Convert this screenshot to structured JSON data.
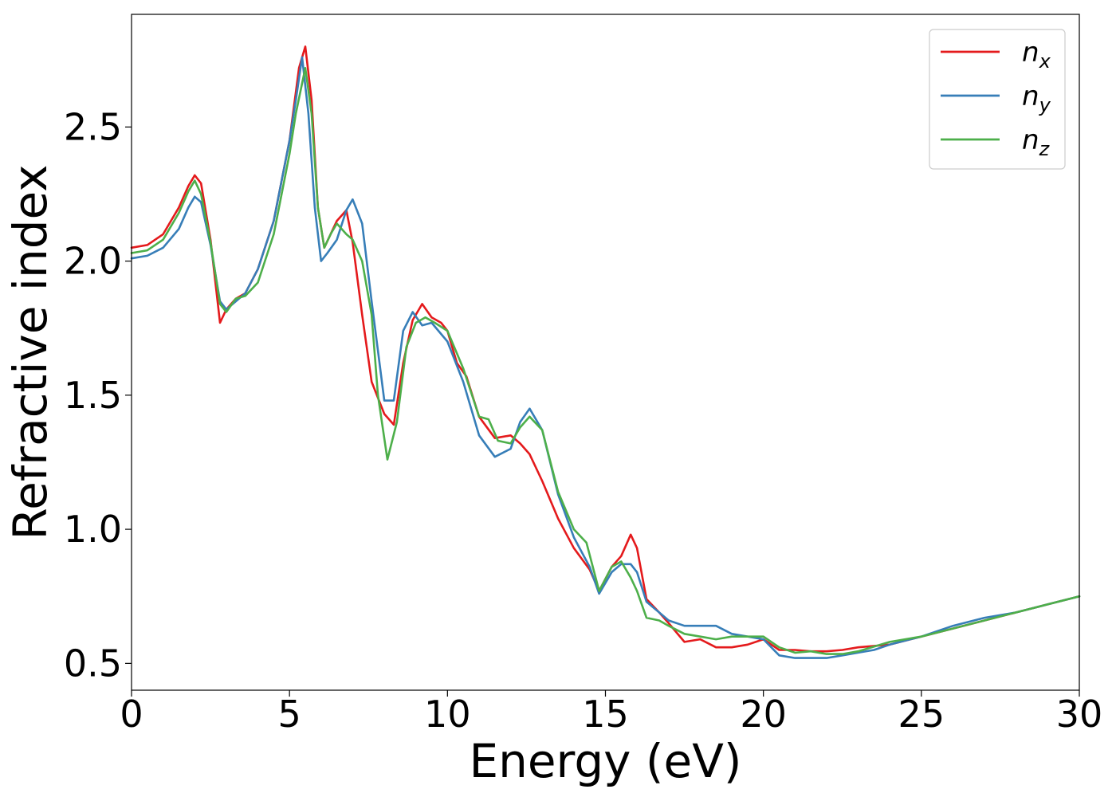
{
  "chart_data": {
    "type": "line",
    "xlabel": "Energy (eV)",
    "ylabel": "Refractive index",
    "xlim": [
      0,
      30
    ],
    "ylim": [
      0.4,
      2.92
    ],
    "xticks": [
      0,
      5,
      10,
      15,
      20,
      25,
      30
    ],
    "xtick_labels": [
      "0",
      "5",
      "10",
      "15",
      "20",
      "25",
      "30"
    ],
    "yticks": [
      0.5,
      1.0,
      1.5,
      2.0,
      2.5
    ],
    "ytick_labels": [
      "0.5",
      "1.0",
      "1.5",
      "2.0",
      "2.5"
    ],
    "grid": false,
    "legend_position": "top-right",
    "series": [
      {
        "name": "n",
        "subscript": "x",
        "color": "#e41a1c",
        "x": [
          0,
          0.5,
          1.0,
          1.5,
          1.8,
          2.0,
          2.2,
          2.5,
          2.8,
          3.0,
          3.3,
          3.6,
          4.0,
          4.5,
          5.0,
          5.3,
          5.5,
          5.7,
          5.9,
          6.1,
          6.3,
          6.5,
          6.8,
          7.0,
          7.3,
          7.6,
          8.0,
          8.3,
          8.6,
          8.9,
          9.2,
          9.5,
          9.8,
          10.0,
          10.3,
          10.6,
          11.0,
          11.5,
          12.0,
          12.3,
          12.6,
          13.0,
          13.5,
          14.0,
          14.5,
          14.8,
          15.2,
          15.5,
          15.8,
          16.0,
          16.3,
          16.7,
          17.0,
          17.5,
          18.0,
          18.5,
          19.0,
          19.5,
          20.0,
          20.5,
          21.0,
          21.5,
          22.0,
          22.5,
          23.0,
          24.0,
          25.0,
          26.0,
          27.0,
          28.0,
          29.0,
          30.0
        ],
        "values": [
          2.05,
          2.06,
          2.1,
          2.2,
          2.28,
          2.32,
          2.29,
          2.08,
          1.77,
          1.82,
          1.86,
          1.88,
          1.97,
          2.15,
          2.45,
          2.72,
          2.8,
          2.6,
          2.2,
          2.05,
          2.1,
          2.15,
          2.19,
          2.07,
          1.8,
          1.55,
          1.43,
          1.39,
          1.62,
          1.78,
          1.84,
          1.79,
          1.77,
          1.74,
          1.62,
          1.57,
          1.42,
          1.34,
          1.35,
          1.32,
          1.28,
          1.18,
          1.04,
          0.93,
          0.85,
          0.77,
          0.86,
          0.9,
          0.98,
          0.93,
          0.74,
          0.69,
          0.65,
          0.58,
          0.59,
          0.56,
          0.56,
          0.57,
          0.59,
          0.55,
          0.55,
          0.545,
          0.545,
          0.55,
          0.56,
          0.57,
          0.6,
          0.63,
          0.66,
          0.69,
          0.72,
          0.75
        ]
      },
      {
        "name": "n",
        "subscript": "y",
        "color": "#377eb8",
        "x": [
          0,
          0.5,
          1.0,
          1.5,
          1.8,
          2.0,
          2.2,
          2.5,
          2.8,
          3.0,
          3.3,
          3.6,
          4.0,
          4.5,
          5.0,
          5.2,
          5.4,
          5.6,
          5.8,
          6.0,
          6.2,
          6.5,
          6.8,
          7.0,
          7.3,
          7.6,
          8.0,
          8.3,
          8.6,
          8.9,
          9.2,
          9.5,
          10.0,
          10.5,
          11.0,
          11.5,
          12.0,
          12.3,
          12.6,
          13.0,
          13.5,
          14.0,
          14.5,
          14.8,
          15.2,
          15.5,
          15.8,
          16.0,
          16.3,
          16.7,
          17.0,
          17.5,
          18.0,
          18.5,
          19.0,
          19.5,
          20.0,
          20.5,
          21.0,
          21.5,
          22.0,
          22.5,
          23.0,
          23.5,
          24.0,
          25.0,
          26.0,
          27.0,
          28.0,
          29.0,
          30.0
        ],
        "values": [
          2.01,
          2.02,
          2.05,
          2.12,
          2.2,
          2.24,
          2.22,
          2.06,
          1.85,
          1.82,
          1.85,
          1.88,
          1.97,
          2.15,
          2.45,
          2.6,
          2.76,
          2.55,
          2.2,
          2.0,
          2.03,
          2.08,
          2.19,
          2.23,
          2.14,
          1.85,
          1.48,
          1.48,
          1.74,
          1.81,
          1.76,
          1.77,
          1.7,
          1.55,
          1.35,
          1.27,
          1.3,
          1.4,
          1.45,
          1.37,
          1.13,
          0.97,
          0.86,
          0.76,
          0.84,
          0.87,
          0.87,
          0.84,
          0.73,
          0.69,
          0.66,
          0.64,
          0.64,
          0.64,
          0.61,
          0.6,
          0.59,
          0.53,
          0.52,
          0.52,
          0.52,
          0.53,
          0.54,
          0.55,
          0.57,
          0.6,
          0.64,
          0.67,
          0.69,
          0.72,
          0.75
        ]
      },
      {
        "name": "n",
        "subscript": "z",
        "color": "#4daf4a",
        "x": [
          0,
          0.5,
          1.0,
          1.5,
          1.8,
          2.0,
          2.2,
          2.5,
          2.8,
          3.0,
          3.3,
          3.6,
          4.0,
          4.5,
          5.0,
          5.2,
          5.5,
          5.7,
          5.9,
          6.1,
          6.3,
          6.5,
          6.8,
          7.0,
          7.3,
          7.6,
          7.8,
          8.1,
          8.4,
          8.7,
          9.0,
          9.3,
          9.6,
          10.0,
          10.5,
          11.0,
          11.3,
          11.6,
          12.0,
          12.3,
          12.6,
          13.0,
          13.5,
          14.0,
          14.4,
          14.8,
          15.2,
          15.5,
          15.8,
          16.0,
          16.3,
          16.7,
          17.0,
          17.5,
          18.0,
          18.5,
          19.0,
          19.5,
          20.0,
          20.5,
          21.0,
          21.5,
          22.0,
          22.5,
          23.0,
          24.0,
          25.0,
          26.0,
          27.0,
          28.0,
          29.0,
          30.0
        ],
        "values": [
          2.03,
          2.04,
          2.08,
          2.18,
          2.26,
          2.3,
          2.25,
          2.07,
          1.84,
          1.81,
          1.86,
          1.87,
          1.92,
          2.1,
          2.4,
          2.55,
          2.72,
          2.55,
          2.2,
          2.05,
          2.1,
          2.14,
          2.1,
          2.08,
          2.0,
          1.8,
          1.5,
          1.26,
          1.4,
          1.68,
          1.77,
          1.79,
          1.77,
          1.74,
          1.6,
          1.42,
          1.41,
          1.33,
          1.32,
          1.38,
          1.42,
          1.37,
          1.14,
          1.0,
          0.95,
          0.77,
          0.86,
          0.88,
          0.82,
          0.77,
          0.67,
          0.66,
          0.64,
          0.61,
          0.6,
          0.59,
          0.6,
          0.6,
          0.6,
          0.56,
          0.54,
          0.545,
          0.535,
          0.535,
          0.545,
          0.58,
          0.6,
          0.63,
          0.66,
          0.69,
          0.72,
          0.75
        ]
      }
    ]
  }
}
